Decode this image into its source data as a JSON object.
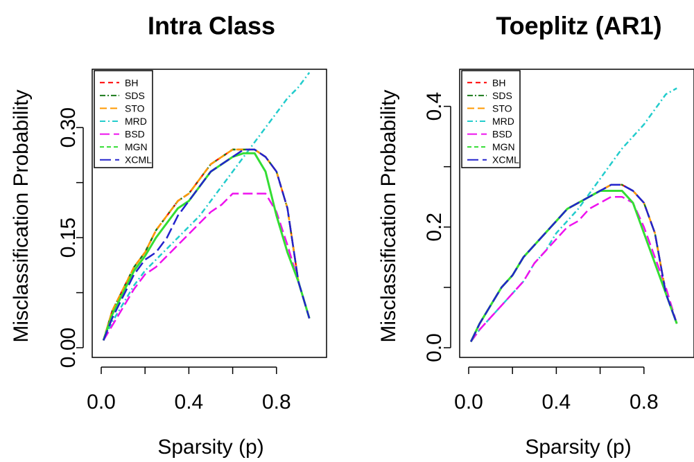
{
  "chart_data": [
    {
      "type": "line",
      "title": "Intra Class",
      "xlabel": "Sparsity (p)",
      "ylabel": "Misclassification Probability",
      "xlim": [
        0,
        1
      ],
      "ylim": [
        0,
        0.37
      ],
      "xticks": [
        0.0,
        0.2,
        0.4,
        0.6,
        0.8
      ],
      "xtick_labels": [
        "0.0",
        "",
        "0.4",
        "",
        "0.8"
      ],
      "yticks": [
        0.0,
        0.075,
        0.15,
        0.225,
        0.3
      ],
      "ytick_labels": [
        "0.00",
        "",
        "0.15",
        "",
        "0.30"
      ],
      "legend_position": "top-left",
      "series": [
        {
          "name": "BH",
          "color": "#ff0000",
          "dash": "7,5",
          "width": 2.5,
          "x": [
            0.01,
            0.05,
            0.1,
            0.15,
            0.2,
            0.25,
            0.3,
            0.35,
            0.4,
            0.45,
            0.5,
            0.55,
            0.6,
            0.65,
            0.7,
            0.75,
            0.8,
            0.85,
            0.9,
            0.95
          ],
          "y": [
            0.01,
            0.05,
            0.08,
            0.11,
            0.13,
            0.16,
            0.18,
            0.2,
            0.21,
            0.23,
            0.25,
            0.26,
            0.27,
            0.27,
            0.27,
            0.26,
            0.24,
            0.19,
            0.09,
            0.04
          ]
        },
        {
          "name": "SDS",
          "color": "#1a7a1a",
          "dash": "8,3,2,3",
          "width": 2.5,
          "x": [
            0.01,
            0.05,
            0.1,
            0.15,
            0.2,
            0.25,
            0.3,
            0.35,
            0.4,
            0.45,
            0.5,
            0.55,
            0.6,
            0.65,
            0.7,
            0.75,
            0.8,
            0.85,
            0.9,
            0.95
          ],
          "y": [
            0.01,
            0.05,
            0.08,
            0.11,
            0.13,
            0.16,
            0.18,
            0.2,
            0.21,
            0.23,
            0.25,
            0.26,
            0.27,
            0.27,
            0.27,
            0.26,
            0.24,
            0.19,
            0.09,
            0.04
          ]
        },
        {
          "name": "STO",
          "color": "#ff9900",
          "dash": "10,5",
          "width": 2.5,
          "x": [
            0.01,
            0.05,
            0.1,
            0.15,
            0.2,
            0.25,
            0.3,
            0.35,
            0.4,
            0.45,
            0.5,
            0.55,
            0.6,
            0.65,
            0.7,
            0.75,
            0.8,
            0.85,
            0.9,
            0.95
          ],
          "y": [
            0.01,
            0.05,
            0.08,
            0.11,
            0.13,
            0.16,
            0.18,
            0.2,
            0.21,
            0.23,
            0.25,
            0.26,
            0.27,
            0.27,
            0.27,
            0.26,
            0.24,
            0.19,
            0.09,
            0.04
          ]
        },
        {
          "name": "MRD",
          "color": "#22cccc",
          "dash": "8,4,2,4",
          "width": 2.5,
          "x": [
            0.01,
            0.05,
            0.1,
            0.15,
            0.2,
            0.25,
            0.3,
            0.35,
            0.4,
            0.45,
            0.5,
            0.55,
            0.6,
            0.65,
            0.7,
            0.75,
            0.8,
            0.85,
            0.9,
            0.95
          ],
          "y": [
            0.01,
            0.035,
            0.06,
            0.085,
            0.105,
            0.12,
            0.135,
            0.15,
            0.165,
            0.18,
            0.2,
            0.22,
            0.24,
            0.26,
            0.28,
            0.3,
            0.32,
            0.34,
            0.355,
            0.375
          ]
        },
        {
          "name": "BSD",
          "color": "#ee11ee",
          "dash": "14,6",
          "width": 2.5,
          "x": [
            0.01,
            0.05,
            0.1,
            0.15,
            0.2,
            0.25,
            0.3,
            0.35,
            0.4,
            0.45,
            0.5,
            0.55,
            0.6,
            0.65,
            0.7,
            0.75,
            0.8,
            0.85,
            0.9,
            0.95
          ],
          "y": [
            0.01,
            0.03,
            0.055,
            0.08,
            0.1,
            0.11,
            0.125,
            0.14,
            0.155,
            0.17,
            0.185,
            0.195,
            0.21,
            0.21,
            0.21,
            0.21,
            0.185,
            0.14,
            0.09,
            0.04
          ]
        },
        {
          "name": "MGN",
          "color": "#33dd33",
          "dash": "",
          "width": 3,
          "x": [
            0.01,
            0.05,
            0.1,
            0.15,
            0.2,
            0.25,
            0.3,
            0.35,
            0.4,
            0.45,
            0.5,
            0.55,
            0.6,
            0.65,
            0.7,
            0.75,
            0.8,
            0.85,
            0.9,
            0.95
          ],
          "y": [
            0.01,
            0.045,
            0.075,
            0.105,
            0.125,
            0.15,
            0.17,
            0.19,
            0.2,
            0.22,
            0.24,
            0.25,
            0.26,
            0.265,
            0.265,
            0.24,
            0.18,
            0.13,
            0.09,
            0.04
          ]
        },
        {
          "name": "XCML",
          "color": "#2222cc",
          "dash": "16,6",
          "width": 2.5,
          "x": [
            0.01,
            0.05,
            0.1,
            0.15,
            0.2,
            0.25,
            0.3,
            0.35,
            0.4,
            0.45,
            0.5,
            0.55,
            0.6,
            0.65,
            0.7,
            0.75,
            0.8,
            0.85,
            0.9,
            0.95
          ],
          "y": [
            0.01,
            0.04,
            0.07,
            0.1,
            0.12,
            0.13,
            0.15,
            0.18,
            0.2,
            0.22,
            0.24,
            0.25,
            0.26,
            0.27,
            0.27,
            0.26,
            0.24,
            0.19,
            0.09,
            0.04
          ]
        }
      ]
    },
    {
      "type": "line",
      "title": "Toeplitz (AR1)",
      "xlabel": "Sparsity (p)",
      "ylabel": "Misclassification Probability",
      "xlim": [
        0,
        1
      ],
      "ylim": [
        0,
        0.45
      ],
      "xticks": [
        0.0,
        0.2,
        0.4,
        0.6,
        0.8
      ],
      "xtick_labels": [
        "0.0",
        "",
        "0.4",
        "",
        "0.8"
      ],
      "yticks": [
        0.0,
        0.1,
        0.2,
        0.3,
        0.4
      ],
      "ytick_labels": [
        "0.0",
        "",
        "0.2",
        "",
        "0.4"
      ],
      "legend_position": "top-left",
      "series": [
        {
          "name": "BH",
          "color": "#ff0000",
          "dash": "7,5",
          "width": 2.5,
          "x": [
            0.01,
            0.05,
            0.1,
            0.15,
            0.2,
            0.25,
            0.3,
            0.35,
            0.4,
            0.45,
            0.5,
            0.55,
            0.6,
            0.65,
            0.7,
            0.75,
            0.8,
            0.85,
            0.9,
            0.95
          ],
          "y": [
            0.01,
            0.04,
            0.07,
            0.1,
            0.12,
            0.15,
            0.17,
            0.19,
            0.21,
            0.23,
            0.24,
            0.25,
            0.26,
            0.27,
            0.27,
            0.26,
            0.24,
            0.19,
            0.09,
            0.04
          ]
        },
        {
          "name": "SDS",
          "color": "#1a7a1a",
          "dash": "8,3,2,3",
          "width": 2.5,
          "x": [
            0.01,
            0.05,
            0.1,
            0.15,
            0.2,
            0.25,
            0.3,
            0.35,
            0.4,
            0.45,
            0.5,
            0.55,
            0.6,
            0.65,
            0.7,
            0.75,
            0.8,
            0.85,
            0.9,
            0.95
          ],
          "y": [
            0.01,
            0.04,
            0.07,
            0.1,
            0.12,
            0.15,
            0.17,
            0.19,
            0.21,
            0.23,
            0.24,
            0.25,
            0.26,
            0.27,
            0.27,
            0.26,
            0.24,
            0.19,
            0.09,
            0.04
          ]
        },
        {
          "name": "STO",
          "color": "#ff9900",
          "dash": "10,5",
          "width": 2.5,
          "x": [
            0.01,
            0.05,
            0.1,
            0.15,
            0.2,
            0.25,
            0.3,
            0.35,
            0.4,
            0.45,
            0.5,
            0.55,
            0.6,
            0.65,
            0.7,
            0.75,
            0.8,
            0.85,
            0.9,
            0.95
          ],
          "y": [
            0.01,
            0.04,
            0.07,
            0.1,
            0.12,
            0.15,
            0.17,
            0.19,
            0.21,
            0.23,
            0.24,
            0.25,
            0.26,
            0.27,
            0.27,
            0.26,
            0.24,
            0.19,
            0.09,
            0.04
          ]
        },
        {
          "name": "MRD",
          "color": "#22cccc",
          "dash": "8,4,2,4",
          "width": 2.5,
          "x": [
            0.01,
            0.05,
            0.1,
            0.15,
            0.2,
            0.25,
            0.3,
            0.35,
            0.4,
            0.45,
            0.5,
            0.55,
            0.6,
            0.65,
            0.7,
            0.75,
            0.8,
            0.85,
            0.9,
            0.95
          ],
          "y": [
            0.01,
            0.03,
            0.05,
            0.07,
            0.09,
            0.11,
            0.14,
            0.16,
            0.19,
            0.21,
            0.23,
            0.255,
            0.28,
            0.305,
            0.33,
            0.35,
            0.37,
            0.395,
            0.42,
            0.43
          ]
        },
        {
          "name": "BSD",
          "color": "#ee11ee",
          "dash": "14,6",
          "width": 2.5,
          "x": [
            0.01,
            0.05,
            0.1,
            0.15,
            0.2,
            0.25,
            0.3,
            0.35,
            0.4,
            0.45,
            0.5,
            0.55,
            0.6,
            0.65,
            0.7,
            0.75,
            0.8,
            0.85,
            0.9,
            0.95
          ],
          "y": [
            0.01,
            0.03,
            0.05,
            0.07,
            0.09,
            0.11,
            0.14,
            0.16,
            0.18,
            0.2,
            0.21,
            0.23,
            0.24,
            0.25,
            0.25,
            0.24,
            0.2,
            0.15,
            0.1,
            0.04
          ]
        },
        {
          "name": "MGN",
          "color": "#33dd33",
          "dash": "",
          "width": 3,
          "x": [
            0.01,
            0.05,
            0.1,
            0.15,
            0.2,
            0.25,
            0.3,
            0.35,
            0.4,
            0.45,
            0.5,
            0.55,
            0.6,
            0.65,
            0.7,
            0.75,
            0.8,
            0.85,
            0.9,
            0.95
          ],
          "y": [
            0.01,
            0.04,
            0.07,
            0.1,
            0.12,
            0.15,
            0.17,
            0.19,
            0.21,
            0.23,
            0.24,
            0.25,
            0.26,
            0.26,
            0.26,
            0.24,
            0.19,
            0.14,
            0.09,
            0.04
          ]
        },
        {
          "name": "XCML",
          "color": "#2222cc",
          "dash": "16,6",
          "width": 2.5,
          "x": [
            0.01,
            0.05,
            0.1,
            0.15,
            0.2,
            0.25,
            0.3,
            0.35,
            0.4,
            0.45,
            0.5,
            0.55,
            0.6,
            0.65,
            0.7,
            0.75,
            0.8,
            0.85,
            0.9,
            0.95
          ],
          "y": [
            0.01,
            0.04,
            0.07,
            0.1,
            0.12,
            0.15,
            0.17,
            0.19,
            0.21,
            0.23,
            0.24,
            0.25,
            0.26,
            0.27,
            0.27,
            0.26,
            0.24,
            0.19,
            0.09,
            0.04
          ]
        }
      ]
    }
  ]
}
